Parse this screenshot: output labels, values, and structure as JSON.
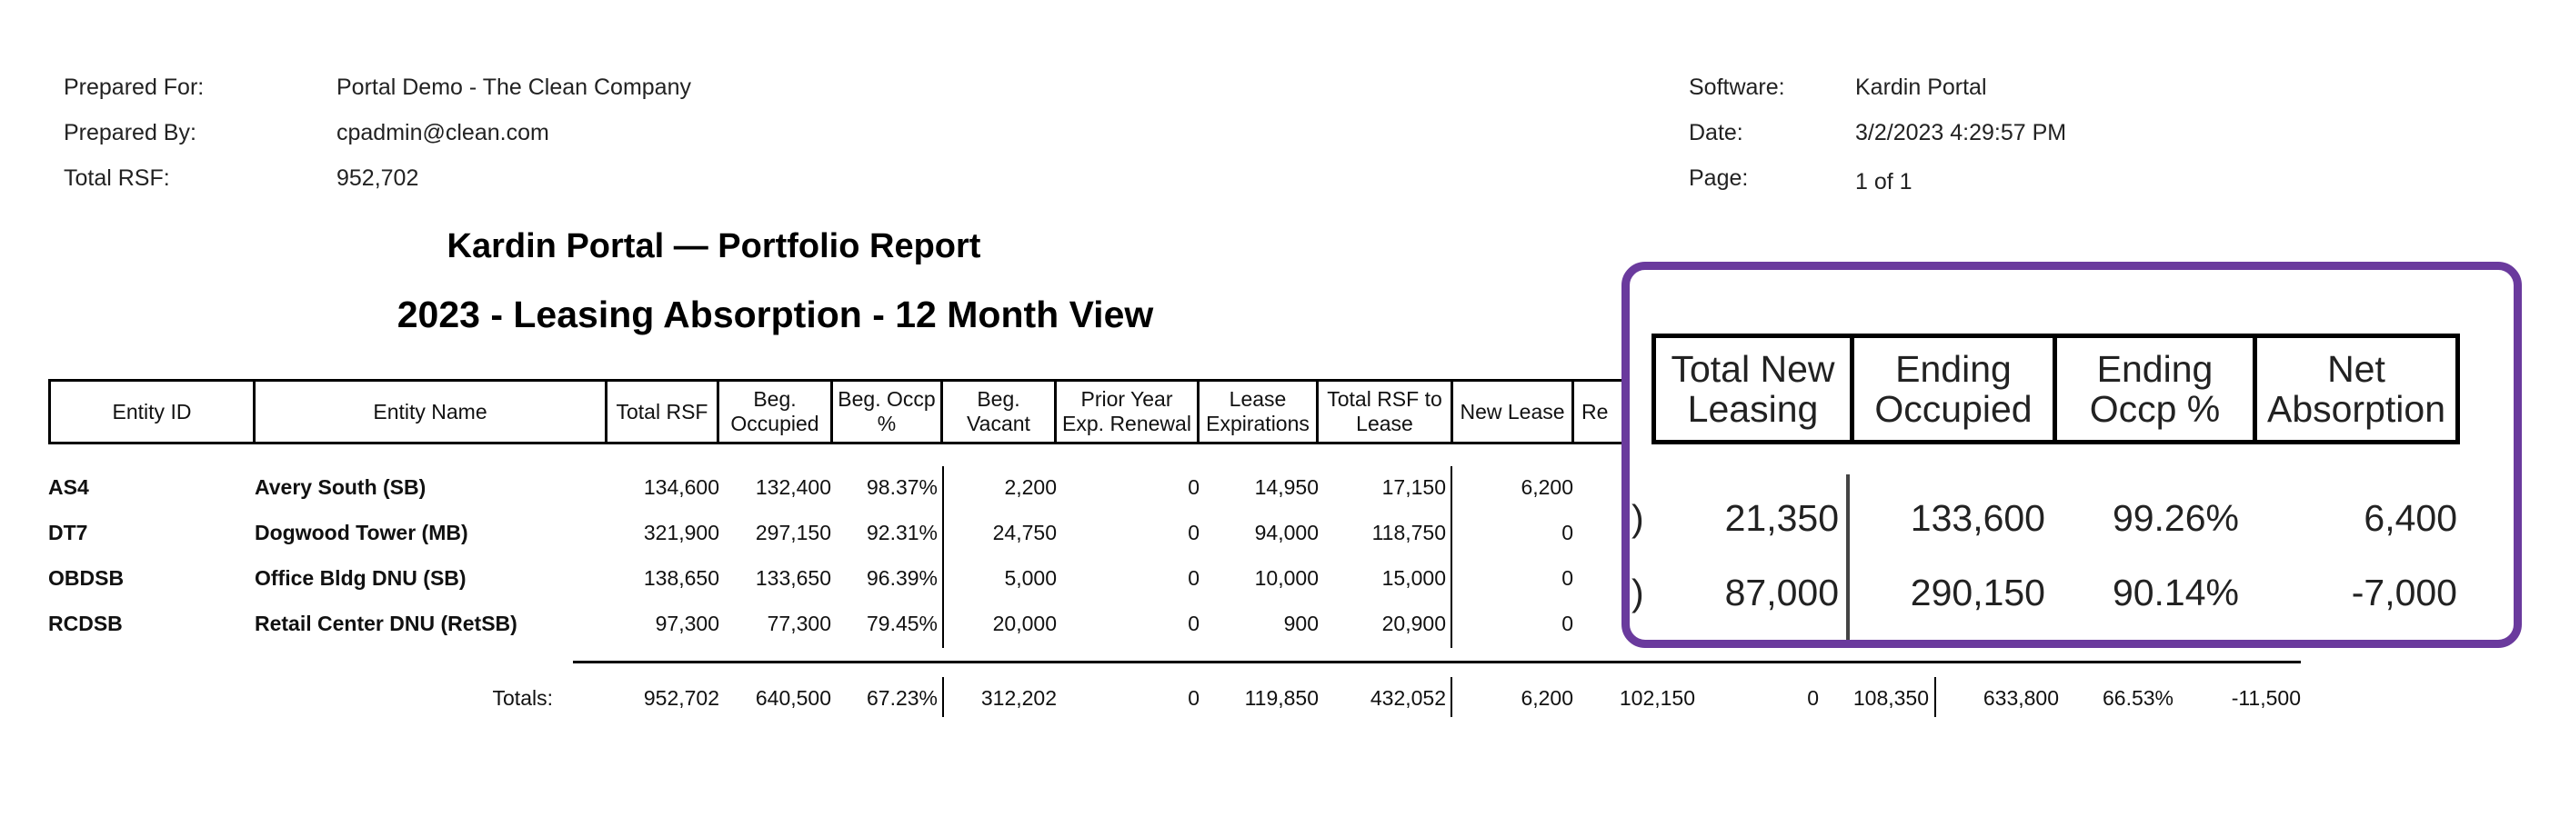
{
  "meta_left": [
    {
      "label": "Prepared For:",
      "value": "Portal Demo - The Clean Company"
    },
    {
      "label": "Prepared By:",
      "value": "cpadmin@clean.com"
    },
    {
      "label": "Total RSF:",
      "value": "952,702"
    }
  ],
  "meta_right": [
    {
      "label": "Software:",
      "value": "Kardin Portal"
    },
    {
      "label": "Date:",
      "value": "3/2/2023 4:29:57 PM"
    },
    {
      "label": "Page:",
      "value": "1 of 1"
    }
  ],
  "report_title": "Kardin Portal — Portfolio Report",
  "report_subtitle": "2023 - Leasing Absorption - 12 Month View",
  "headers": [
    [
      "Entity ID"
    ],
    [
      "Entity Name"
    ],
    [
      "Total RSF"
    ],
    [
      "Beg.",
      "Occupied"
    ],
    [
      "Beg. Occp",
      "%"
    ],
    [
      "Beg.",
      "Vacant"
    ],
    [
      "Prior Year",
      "Exp. Renewal"
    ],
    [
      "Lease",
      "Expirations"
    ],
    [
      "Total RSF to",
      "Lease"
    ],
    [
      "New Lease"
    ],
    [
      "Re"
    ]
  ],
  "rows": [
    {
      "id": "AS4",
      "name": "Avery South (SB)",
      "total_rsf": "134,600",
      "beg_occupied": "132,400",
      "beg_occp_pct": "98.37%",
      "beg_vacant": "2,200",
      "prior_year_renewal": "0",
      "lease_expirations": "14,950",
      "total_rsf_to_lease": "17,150",
      "new_lease": "6,200"
    },
    {
      "id": "DT7",
      "name": "Dogwood Tower (MB)",
      "total_rsf": "321,900",
      "beg_occupied": "297,150",
      "beg_occp_pct": "92.31%",
      "beg_vacant": "24,750",
      "prior_year_renewal": "0",
      "lease_expirations": "94,000",
      "total_rsf_to_lease": "118,750",
      "new_lease": "0"
    },
    {
      "id": "OBDSB",
      "name": "Office Bldg DNU (SB)",
      "total_rsf": "138,650",
      "beg_occupied": "133,650",
      "beg_occp_pct": "96.39%",
      "beg_vacant": "5,000",
      "prior_year_renewal": "0",
      "lease_expirations": "10,000",
      "total_rsf_to_lease": "15,000",
      "new_lease": "0"
    },
    {
      "id": "RCDSB",
      "name": "Retail Center DNU (RetSB)",
      "total_rsf": "97,300",
      "beg_occupied": "77,300",
      "beg_occp_pct": "79.45%",
      "beg_vacant": "20,000",
      "prior_year_renewal": "0",
      "lease_expirations": "900",
      "total_rsf_to_lease": "20,900",
      "new_lease": "0"
    }
  ],
  "totals": {
    "label": "Totals:",
    "total_rsf": "952,702",
    "beg_occupied": "640,500",
    "beg_occp_pct": "67.23%",
    "beg_vacant": "312,202",
    "prior_year_renewal": "0",
    "lease_expirations": "119,850",
    "total_rsf_to_lease": "432,052",
    "new_lease": "6,200",
    "renewal": "102,150",
    "other": "0",
    "total_new_leasing": "108,350",
    "ending_occupied": "633,800",
    "ending_occp_pct": "66.53%",
    "net_absorption": "-11,500"
  },
  "zoom": {
    "headers": [
      [
        "Total New",
        "Leasing"
      ],
      [
        "Ending",
        "Occupied"
      ],
      [
        "Ending",
        "Occp %"
      ],
      [
        "Net",
        "Absorption"
      ]
    ],
    "rows": [
      {
        "cut": ")",
        "total_new_leasing": "21,350",
        "ending_occupied": "133,600",
        "ending_occp_pct": "99.26%",
        "net_absorption": "6,400"
      },
      {
        "cut": ")",
        "total_new_leasing": "87,000",
        "ending_occupied": "290,150",
        "ending_occp_pct": "90.14%",
        "net_absorption": "-7,000"
      }
    ],
    "highlight_color": "#6a3a9d"
  }
}
